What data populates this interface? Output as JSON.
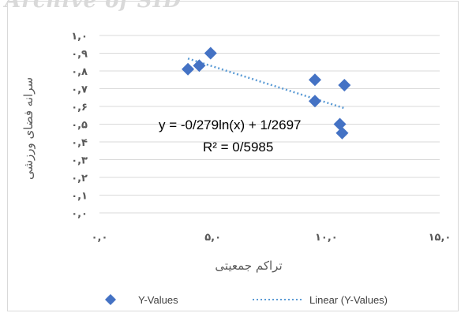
{
  "watermark": "Archive of SID",
  "colors": {
    "marker": "#4472c4",
    "trendline": "#5b9bd5",
    "gridline": "#d9d9d9",
    "tick_text": "#595959"
  },
  "chart_data": {
    "type": "scatter",
    "series": [
      {
        "name": "Y-Values",
        "marker": "diamond",
        "points": [
          {
            "x": 3.9,
            "y": 0.81
          },
          {
            "x": 4.4,
            "y": 0.83
          },
          {
            "x": 4.9,
            "y": 0.9
          },
          {
            "x": 9.5,
            "y": 0.75
          },
          {
            "x": 9.5,
            "y": 0.63
          },
          {
            "x": 10.8,
            "y": 0.72
          },
          {
            "x": 10.6,
            "y": 0.5
          },
          {
            "x": 10.7,
            "y": 0.45
          }
        ]
      }
    ],
    "trendline": {
      "name": "Linear (Y-Values)",
      "style": "dotted",
      "x_from": 3.9,
      "x_to": 10.8,
      "y_from": 0.87,
      "y_to": 0.59
    },
    "annotations": {
      "equation": "y = -0/279ln(x) + 1/2697",
      "r_squared": "R² = 0/5985"
    },
    "xlabel": "تراکم جمعیتی",
    "ylabel": "سرانه فضای ورزشی",
    "xlim": [
      0,
      15
    ],
    "ylim": [
      0,
      1
    ],
    "x_ticks": [
      0,
      5,
      10,
      15
    ],
    "x_tick_labels": [
      "۰,۰",
      "۵,۰",
      "۱۰,۰",
      "۱۵,۰"
    ],
    "y_ticks": [
      0,
      0.1,
      0.2,
      0.3,
      0.4,
      0.5,
      0.6,
      0.7,
      0.8,
      0.9,
      1.0
    ],
    "y_tick_labels": [
      "۰,۰",
      "۰,۱",
      "۰,۲",
      "۰,۳",
      "۰,۴",
      "۰,۵",
      "۰,۶",
      "۰,۷",
      "۰,۸",
      "۰,۹",
      "۱,۰"
    ],
    "grid": "horizontal",
    "legend_position": "bottom",
    "legend": [
      "Y-Values",
      "Linear (Y-Values)"
    ]
  }
}
